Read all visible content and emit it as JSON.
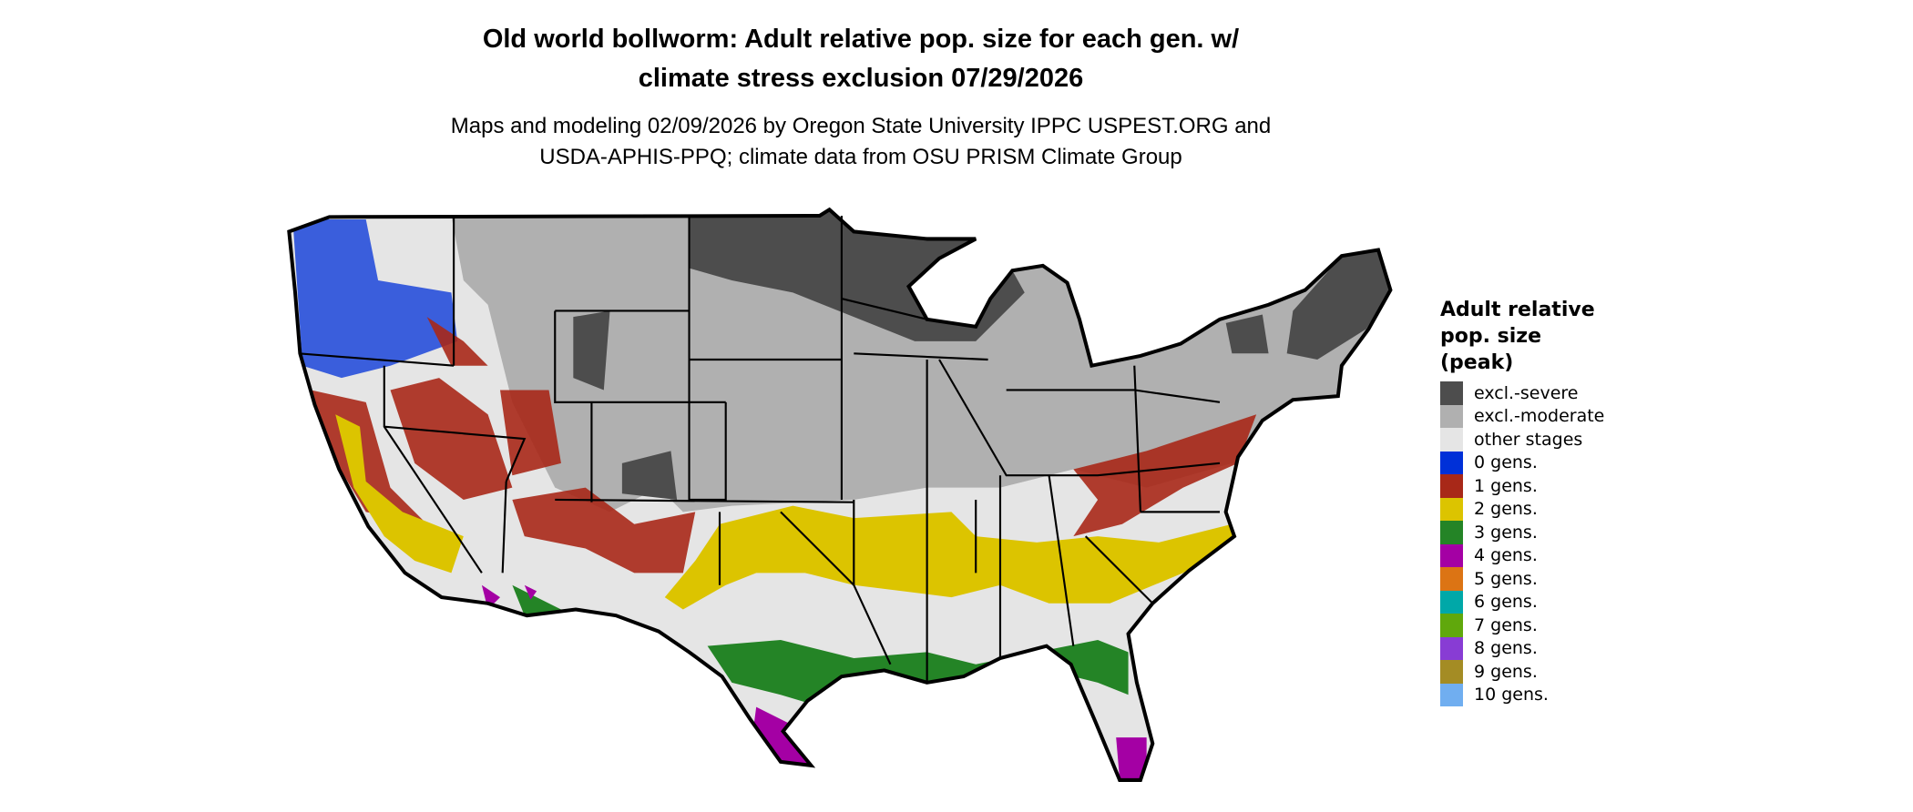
{
  "title": {
    "line1": "Old world bollworm: Adult relative pop. size for each gen. w/",
    "line2": "climate stress exclusion 07/29/2026"
  },
  "subtitle": {
    "line1": "Maps and modeling 02/09/2026 by Oregon State University IPPC USPEST.ORG and",
    "line2": "USDA-APHIS-PPQ; climate data from OSU PRISM Climate Group"
  },
  "legend": {
    "title_lines": [
      "Adult relative",
      "pop. size",
      "(peak)"
    ],
    "items": [
      {
        "label": "excl.-severe",
        "color": "#4d4d4d"
      },
      {
        "label": "excl.-moderate",
        "color": "#b0b0b0"
      },
      {
        "label": "other stages",
        "color": "#e5e5e5"
      },
      {
        "label": "0 gens.",
        "color": "#0030d8"
      },
      {
        "label": "1 gens.",
        "color": "#a82818"
      },
      {
        "label": "2 gens.",
        "color": "#dcc400"
      },
      {
        "label": "3 gens.",
        "color": "#248426"
      },
      {
        "label": "4 gens.",
        "color": "#a400a4"
      },
      {
        "label": "5 gens.",
        "color": "#dc7414"
      },
      {
        "label": "6 gens.",
        "color": "#00a8a8"
      },
      {
        "label": "7 gens.",
        "color": "#60a80c"
      },
      {
        "label": "8 gens.",
        "color": "#883cd4"
      },
      {
        "label": "9 gens.",
        "color": "#a48c24"
      },
      {
        "label": "10 gens.",
        "color": "#70aef0"
      }
    ]
  }
}
